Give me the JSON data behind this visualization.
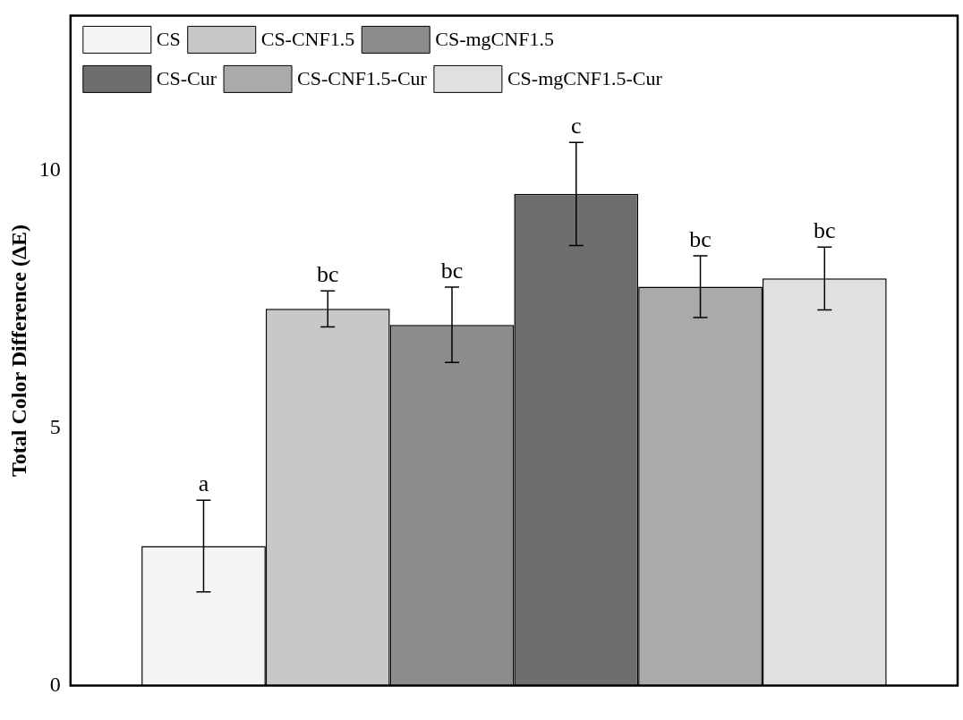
{
  "chart_data": {
    "type": "bar",
    "ylabel": "Total Color Difference (ΔE)",
    "categories": [
      null
    ],
    "series": [
      {
        "name": "CS",
        "color": "#f5f5f5",
        "values": [
          2.71
        ],
        "errors": [
          0.89
        ]
      },
      {
        "name": "CS-CNF1.5",
        "color": "#c8c8c8",
        "values": [
          7.31
        ],
        "errors": [
          0.35
        ]
      },
      {
        "name": "CS-mgCNF1.5",
        "color": "#8c8c8c",
        "values": [
          7.0
        ],
        "errors": [
          0.73
        ]
      },
      {
        "name": "CS-Cur",
        "color": "#6e6e6e",
        "values": [
          9.54
        ],
        "errors": [
          1.0
        ]
      },
      {
        "name": "CS-CNF1.5-Cur",
        "color": "#aaaaaa",
        "values": [
          7.74
        ],
        "errors": [
          0.6
        ]
      },
      {
        "name": "CS-mgCNF1.5-Cur",
        "color": "#e0e0e0",
        "values": [
          7.9
        ],
        "errors": [
          0.61
        ]
      }
    ],
    "annotations": [
      "a",
      "bc",
      "bc",
      "c",
      "bc",
      "bc"
    ],
    "ylim": [
      0,
      13
    ],
    "yticks": [
      0,
      5,
      10
    ],
    "grid": false,
    "legend": "top left"
  }
}
